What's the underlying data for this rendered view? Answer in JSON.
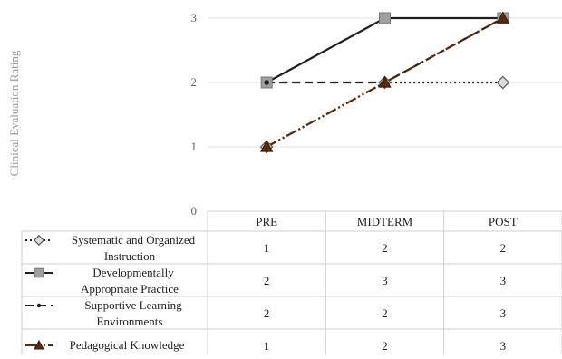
{
  "chart_data": {
    "type": "line",
    "title": "",
    "ylabel": "Clinical Evaluation Rating",
    "xlabel": "",
    "categories": [
      "PRE",
      "MIDTERM",
      "POST"
    ],
    "ylim": [
      0,
      3
    ],
    "yticks": [
      0,
      1,
      2,
      3
    ],
    "grid": true,
    "legend": "data-table",
    "series": [
      {
        "name": "Systematic and Organized Instruction",
        "legend_lines": [
          "Systematic and Organized",
          "Instruction"
        ],
        "values": [
          1,
          2,
          2
        ],
        "color": "#1f1f1f",
        "marker": "diamond",
        "line_style": "dotted"
      },
      {
        "name": "Developmentally Appropriate Practice",
        "legend_lines": [
          "Developmentally",
          "Appropriate Practice"
        ],
        "values": [
          2,
          3,
          3
        ],
        "color": "#1f1f1f",
        "marker": "square",
        "line_style": "solid"
      },
      {
        "name": "Supportive Learning Environments",
        "legend_lines": [
          "Supportive Learning",
          "Environments"
        ],
        "values": [
          2,
          2,
          3
        ],
        "color": "#1f1f1f",
        "marker": "dot",
        "line_style": "dashed"
      },
      {
        "name": "Pedagogical Knowledge",
        "legend_lines": [
          "Pedagogical Knowledge"
        ],
        "values": [
          1,
          2,
          3
        ],
        "color": "#5a2a10",
        "marker": "triangle",
        "line_style": "long-dash-dot-dot"
      }
    ]
  }
}
